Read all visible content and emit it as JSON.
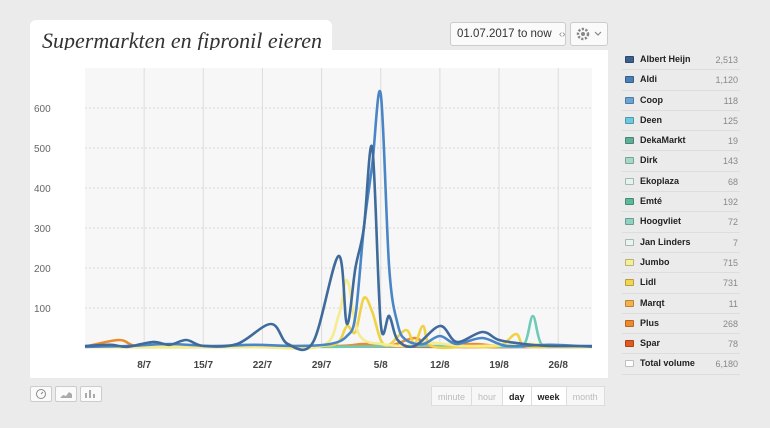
{
  "header": {
    "title": "Supermarkten en fipronil eieren",
    "date_range": "01.07.2017 to now"
  },
  "icons": {
    "date_arrows": "left-right-arrows-icon",
    "settings": "gear-icon",
    "settings_menu": "chevron-down-icon",
    "view_gauge": "gauge-icon",
    "view_area": "area-chart-icon",
    "view_bar": "bar-chart-icon"
  },
  "granularity": {
    "options": [
      "minute",
      "hour",
      "day",
      "week",
      "month"
    ],
    "selected": "day"
  },
  "legend": [
    {
      "name": "Albert Heijn",
      "value": "2,513",
      "color": "#3b5f8f"
    },
    {
      "name": "Aldi",
      "value": "1,120",
      "color": "#4a7fb8"
    },
    {
      "name": "Coop",
      "value": "118",
      "color": "#6aa3d6"
    },
    {
      "name": "Deen",
      "value": "125",
      "color": "#6ccae0"
    },
    {
      "name": "DekaMarkt",
      "value": "19",
      "color": "#5fae98"
    },
    {
      "name": "Dirk",
      "value": "143",
      "color": "#a6d8c8"
    },
    {
      "name": "Ekoplaza",
      "value": "68",
      "color": "#e2f4ec"
    },
    {
      "name": "Emté",
      "value": "192",
      "color": "#5fb898"
    },
    {
      "name": "Hoogvliet",
      "value": "72",
      "color": "#8fd1c2"
    },
    {
      "name": "Jan Linders",
      "value": "7",
      "color": "#e6f5f0"
    },
    {
      "name": "Jumbo",
      "value": "715",
      "color": "#f6ef9a"
    },
    {
      "name": "Lidl",
      "value": "731",
      "color": "#f3d552"
    },
    {
      "name": "Marqt",
      "value": "11",
      "color": "#f6b24a"
    },
    {
      "name": "Plus",
      "value": "268",
      "color": "#ef8a2c"
    },
    {
      "name": "Spar",
      "value": "78",
      "color": "#e25a22"
    },
    {
      "name": "Total volume",
      "value": "6,180",
      "color": "#ffffff"
    }
  ],
  "chart_data": {
    "type": "line",
    "title": "Supermarkten en fipronil eieren",
    "x_ticks": [
      "8/7",
      "15/7",
      "22/7",
      "29/7",
      "5/8",
      "12/8",
      "19/8",
      "26/8"
    ],
    "x_tick_index": [
      7,
      14,
      21,
      28,
      35,
      42,
      49,
      56
    ],
    "y_ticks": [
      100,
      200,
      300,
      400,
      500,
      600
    ],
    "ylim": [
      0,
      700
    ],
    "x_start": "01.07",
    "x_count": 61,
    "grid": true,
    "series": [
      {
        "name": "Albert Heijn",
        "color": "#3f6a9c",
        "points": [
          [
            0,
            5
          ],
          [
            3,
            8
          ],
          [
            5,
            3
          ],
          [
            8,
            15
          ],
          [
            10,
            8
          ],
          [
            12,
            20
          ],
          [
            14,
            5
          ],
          [
            18,
            10
          ],
          [
            22,
            60
          ],
          [
            24,
            10
          ],
          [
            27,
            15
          ],
          [
            30,
            230
          ],
          [
            31,
            60
          ],
          [
            32,
            200
          ],
          [
            33,
            300
          ],
          [
            34,
            500
          ],
          [
            35,
            60
          ],
          [
            36,
            80
          ],
          [
            37,
            20
          ],
          [
            39,
            5
          ],
          [
            42,
            55
          ],
          [
            44,
            15
          ],
          [
            47,
            40
          ],
          [
            49,
            20
          ],
          [
            52,
            10
          ],
          [
            55,
            5
          ],
          [
            60,
            5
          ]
        ]
      },
      {
        "name": "Aldi",
        "color": "#4a86c5",
        "points": [
          [
            0,
            3
          ],
          [
            5,
            5
          ],
          [
            10,
            10
          ],
          [
            15,
            5
          ],
          [
            20,
            8
          ],
          [
            25,
            5
          ],
          [
            29,
            10
          ],
          [
            31,
            30
          ],
          [
            32,
            80
          ],
          [
            33,
            300
          ],
          [
            34,
            460
          ],
          [
            35,
            635
          ],
          [
            36,
            200
          ],
          [
            37,
            60
          ],
          [
            38,
            20
          ],
          [
            40,
            10
          ],
          [
            42,
            30
          ],
          [
            44,
            10
          ],
          [
            47,
            25
          ],
          [
            50,
            5
          ],
          [
            55,
            8
          ],
          [
            60,
            3
          ]
        ]
      },
      {
        "name": "Jumbo",
        "color": "#f5ec92",
        "points": [
          [
            0,
            2
          ],
          [
            10,
            3
          ],
          [
            20,
            2
          ],
          [
            28,
            5
          ],
          [
            30,
            80
          ],
          [
            31,
            170
          ],
          [
            32,
            60
          ],
          [
            33,
            20
          ],
          [
            35,
            10
          ],
          [
            38,
            5
          ],
          [
            40,
            15
          ],
          [
            45,
            5
          ],
          [
            50,
            8
          ],
          [
            53,
            10
          ],
          [
            55,
            5
          ],
          [
            60,
            2
          ]
        ]
      },
      {
        "name": "Lidl",
        "color": "#f1d246",
        "points": [
          [
            0,
            2
          ],
          [
            10,
            2
          ],
          [
            20,
            3
          ],
          [
            28,
            5
          ],
          [
            30,
            15
          ],
          [
            31,
            55
          ],
          [
            32,
            40
          ],
          [
            33,
            125
          ],
          [
            34,
            90
          ],
          [
            35,
            20
          ],
          [
            36,
            8
          ],
          [
            38,
            45
          ],
          [
            39,
            10
          ],
          [
            40,
            55
          ],
          [
            41,
            5
          ],
          [
            45,
            3
          ],
          [
            49,
            5
          ],
          [
            51,
            35
          ],
          [
            52,
            5
          ],
          [
            55,
            3
          ],
          [
            60,
            2
          ]
        ]
      },
      {
        "name": "Hoogvliet",
        "color": "#6fcab6",
        "points": [
          [
            0,
            2
          ],
          [
            10,
            2
          ],
          [
            20,
            2
          ],
          [
            30,
            3
          ],
          [
            40,
            5
          ],
          [
            50,
            3
          ],
          [
            52,
            10
          ],
          [
            53,
            80
          ],
          [
            54,
            10
          ],
          [
            56,
            3
          ],
          [
            60,
            2
          ]
        ]
      },
      {
        "name": "Plus",
        "color": "#ee8a2b",
        "points": [
          [
            0,
            3
          ],
          [
            4,
            20
          ],
          [
            6,
            5
          ],
          [
            10,
            3
          ],
          [
            20,
            5
          ],
          [
            30,
            5
          ],
          [
            33,
            10
          ],
          [
            36,
            5
          ],
          [
            39,
            25
          ],
          [
            41,
            5
          ],
          [
            46,
            10
          ],
          [
            50,
            3
          ],
          [
            55,
            5
          ],
          [
            60,
            2
          ]
        ]
      },
      {
        "name": "Spar",
        "color": "#e2582a",
        "points": [
          [
            0,
            2
          ],
          [
            8,
            3
          ],
          [
            16,
            2
          ],
          [
            24,
            3
          ],
          [
            32,
            4
          ],
          [
            40,
            3
          ],
          [
            48,
            2
          ],
          [
            56,
            3
          ],
          [
            60,
            2
          ]
        ]
      }
    ]
  }
}
